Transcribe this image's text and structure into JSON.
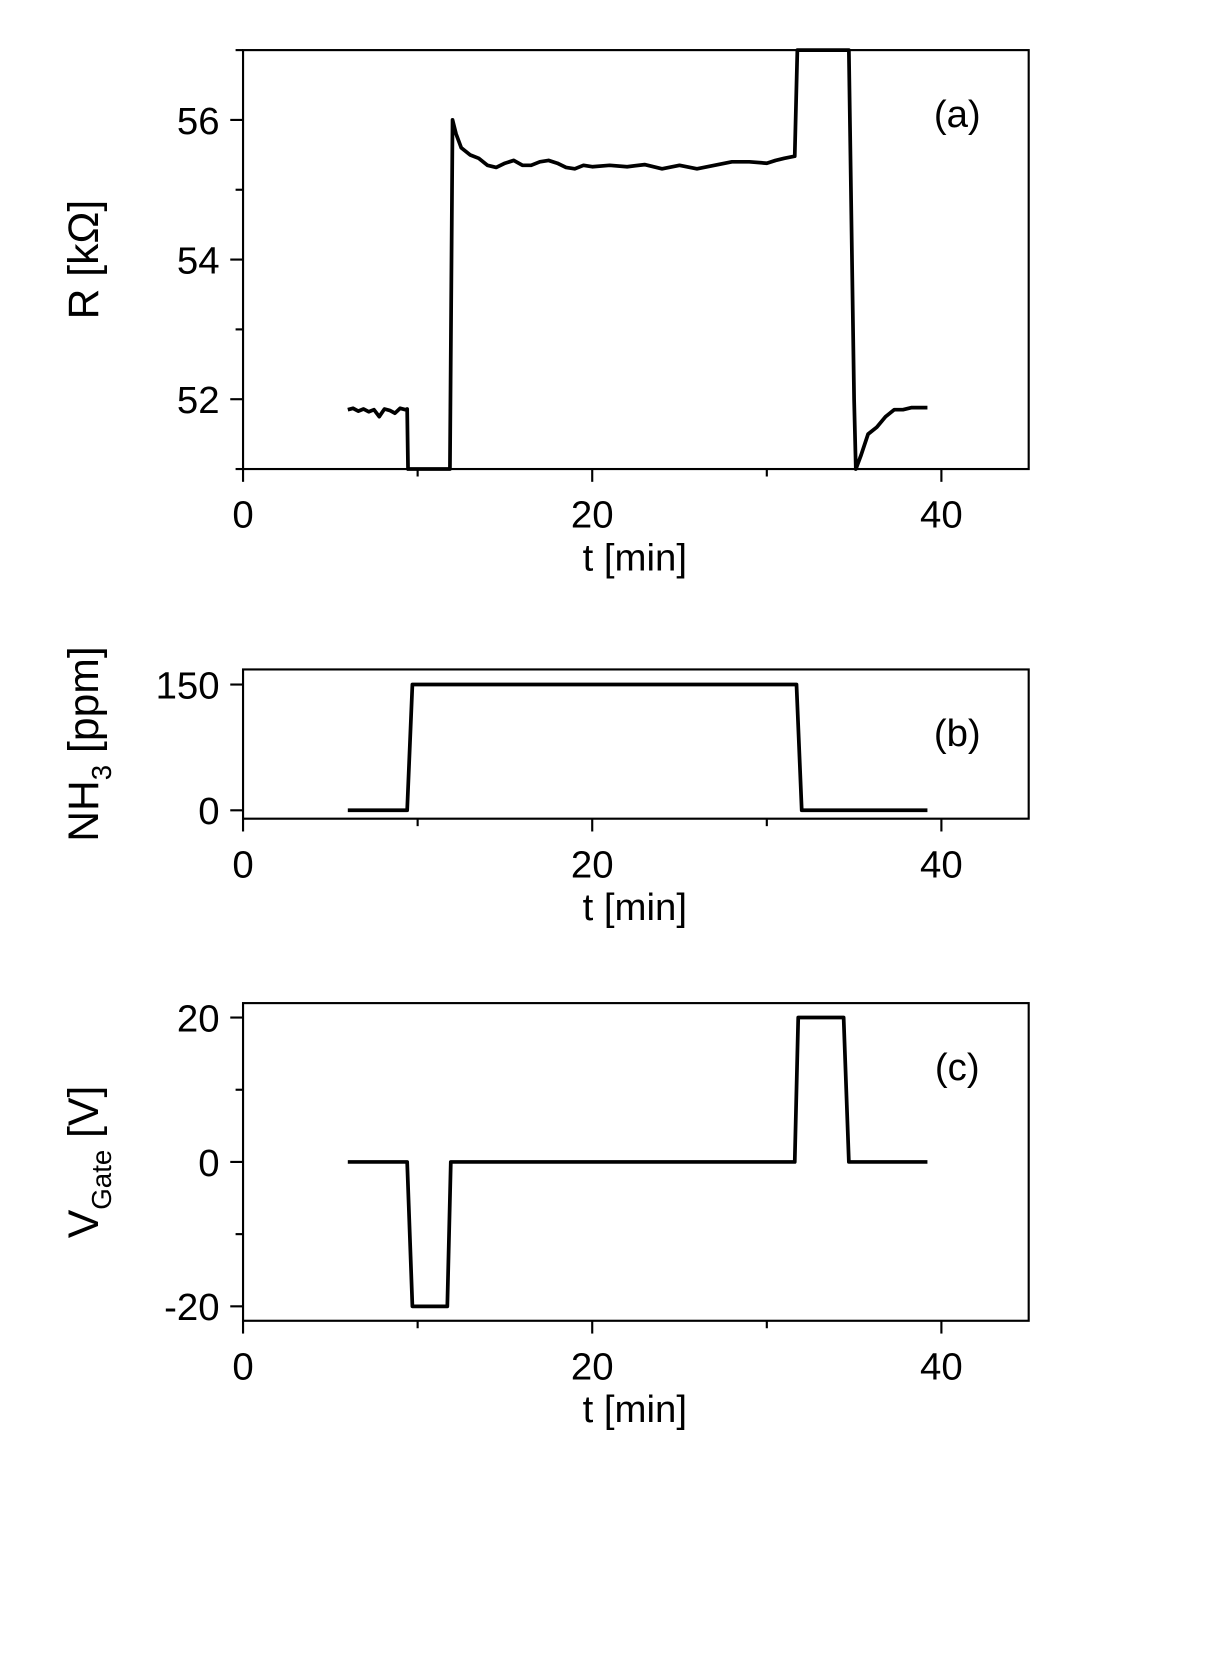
{
  "chart_data": [
    {
      "type": "line",
      "annotation": "(a)",
      "xlabel": "t [min]",
      "ylabel": [
        "R [kΩ]"
      ],
      "color": "#000000",
      "xlim": [
        0,
        45
      ],
      "xticks": [
        0,
        20,
        40
      ],
      "xminorticks": [
        10,
        30
      ],
      "ylim": [
        51,
        57
      ],
      "yticks": [
        52,
        54,
        56
      ],
      "yminorticks": [
        51,
        53,
        55,
        57
      ],
      "x": [
        6.0,
        6.3,
        6.6,
        6.9,
        7.2,
        7.5,
        7.8,
        8.1,
        8.4,
        8.7,
        9.0,
        9.3,
        9.4,
        9.45,
        11.85,
        12.0,
        12.2,
        12.5,
        13.0,
        13.5,
        14.0,
        14.5,
        15.0,
        15.5,
        16.0,
        16.5,
        17.0,
        17.5,
        18.0,
        18.5,
        19.0,
        19.5,
        20.0,
        21.0,
        22.0,
        23.0,
        24.0,
        25.0,
        26.0,
        27.0,
        28.0,
        29.0,
        30.0,
        30.5,
        31.0,
        31.6,
        31.75,
        34.7,
        35.0,
        35.1,
        35.4,
        35.8,
        36.3,
        36.8,
        37.3,
        37.8,
        38.3,
        38.8,
        39.2
      ],
      "values": [
        51.85,
        51.87,
        51.83,
        51.86,
        51.82,
        51.85,
        51.75,
        51.86,
        51.84,
        51.8,
        51.87,
        51.85,
        51.86,
        51.0,
        51.0,
        56.0,
        55.8,
        55.6,
        55.5,
        55.45,
        55.35,
        55.32,
        55.38,
        55.42,
        55.35,
        55.35,
        55.4,
        55.42,
        55.38,
        55.32,
        55.3,
        55.35,
        55.33,
        55.35,
        55.33,
        55.36,
        55.3,
        55.35,
        55.3,
        55.35,
        55.4,
        55.4,
        55.38,
        55.42,
        55.45,
        55.48,
        57.0,
        57.0,
        52.0,
        51.0,
        51.2,
        51.5,
        51.6,
        51.75,
        51.85,
        51.85,
        51.88,
        51.88,
        51.88
      ]
    },
    {
      "type": "line",
      "annotation": "(b)",
      "xlabel": "t [min]",
      "ylabel": [
        "NH",
        "3",
        " [ppm]"
      ],
      "color": "#000000",
      "xlim": [
        0,
        45
      ],
      "xticks": [
        0,
        20,
        40
      ],
      "xminorticks": [
        10,
        30
      ],
      "ylim": [
        -10,
        168
      ],
      "yticks": [
        0,
        150
      ],
      "yminorticks": [],
      "x": [
        6.0,
        9.4,
        9.7,
        31.7,
        32.0,
        39.2
      ],
      "values": [
        0,
        0,
        150,
        150,
        0,
        0
      ]
    },
    {
      "type": "line",
      "annotation": "(c)",
      "xlabel": "t [min]",
      "ylabel": [
        "V",
        "Gate",
        " [V]"
      ],
      "color": "#000000",
      "xlim": [
        0,
        45
      ],
      "xticks": [
        0,
        20,
        40
      ],
      "xminorticks": [
        10,
        30
      ],
      "ylim": [
        -22,
        22
      ],
      "yticks": [
        -20,
        0,
        20
      ],
      "yminorticks": [
        -10,
        10
      ],
      "x": [
        6.0,
        9.4,
        9.7,
        11.7,
        11.9,
        31.6,
        31.8,
        34.4,
        34.7,
        39.2
      ],
      "values": [
        0,
        0,
        -20,
        -20,
        0,
        0,
        20,
        20,
        0,
        0
      ]
    }
  ]
}
